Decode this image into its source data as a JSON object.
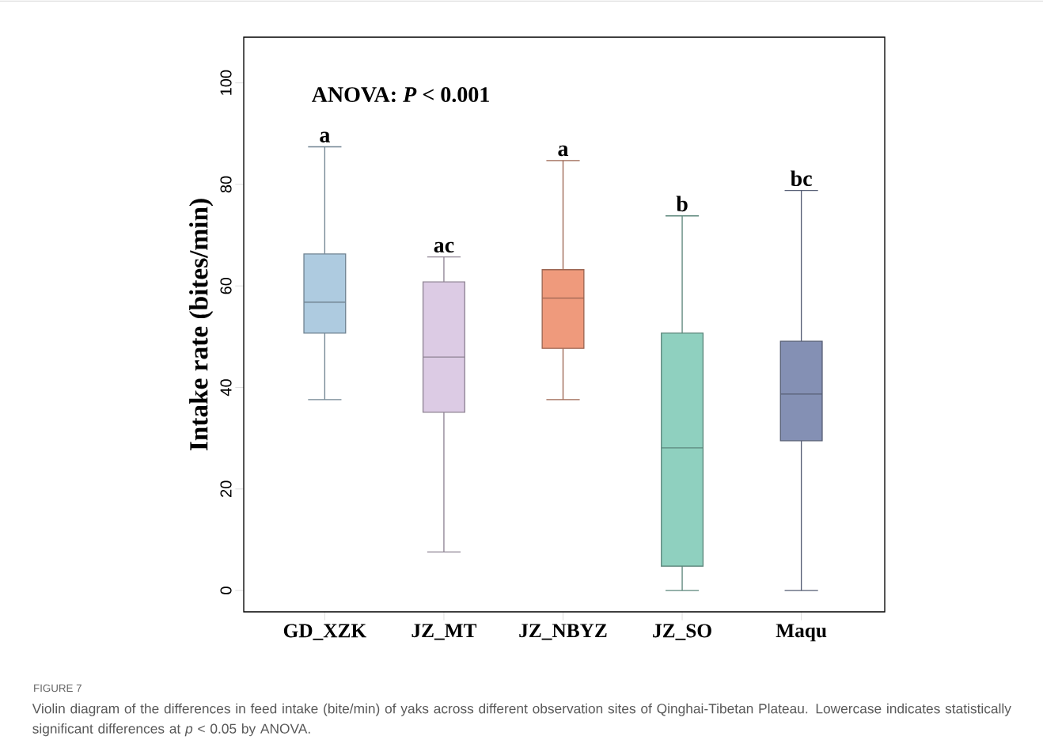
{
  "chart_data": {
    "type": "box",
    "ylabel": "Intake  rate (bites/min)",
    "categories": [
      "GD_XZK",
      "JZ_MT",
      "JZ_NBYZ",
      "JZ_SO",
      "Maqu"
    ],
    "colors": [
      "#aecbe0",
      "#dccbe4",
      "#ef9a7c",
      "#8fd0bf",
      "#8490b4"
    ],
    "boxes": [
      {
        "low": 37.6,
        "q1": 50.7,
        "median": 56.8,
        "q3": 66.3,
        "high": 87.4
      },
      {
        "low": 7.6,
        "q1": 35.1,
        "median": 46.0,
        "q3": 60.8,
        "high": 65.7
      },
      {
        "low": 37.6,
        "q1": 47.7,
        "median": 57.6,
        "q3": 63.2,
        "high": 84.7
      },
      {
        "low": 0,
        "q1": 4.8,
        "median": 28.1,
        "q3": 50.7,
        "high": 73.8
      },
      {
        "low": 0,
        "q1": 29.5,
        "median": 38.7,
        "q3": 49.1,
        "high": 78.8
      }
    ],
    "ylim": [
      -4.2,
      109
    ],
    "yticks": [
      0,
      20,
      40,
      60,
      80,
      100
    ],
    "grid": false,
    "annotations": [
      "ANOVA: *P* < 0.001",
      "FIGURE 7",
      "Violin diagram of the differences in feed intake (bite/min) of yaks across different observation sites of Qinghai-Tibetan Plateau. Lowercase indicates statistically significant differences at *p* < 0.05 by ANOVA.",
      "a",
      "ac",
      "a",
      "b",
      "bc"
    ]
  }
}
